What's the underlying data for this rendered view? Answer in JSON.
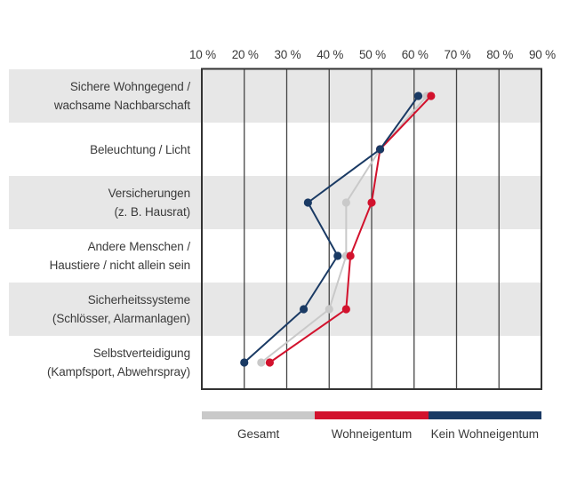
{
  "chart_data": {
    "type": "line",
    "title": "",
    "orientation": "horizontal-categories",
    "x_axis": {
      "position": "top",
      "unit": "%",
      "ticks": [
        10,
        20,
        30,
        40,
        50,
        60,
        70,
        80,
        90
      ],
      "tick_labels": [
        "10 %",
        "20 %",
        "30 %",
        "40 %",
        "50 %",
        "60 %",
        "70 %",
        "80 %",
        "90 %"
      ],
      "xlim": [
        10,
        90
      ]
    },
    "grid": "vertical-only",
    "row_banding": true,
    "categories": [
      {
        "lines": [
          "Sichere Wohngegend /",
          "wachsame Nachbarschaft"
        ]
      },
      {
        "lines": [
          "Beleuchtung / Licht"
        ]
      },
      {
        "lines": [
          "Versicherungen",
          "(z. B. Hausrat)"
        ]
      },
      {
        "lines": [
          "Andere Menschen /",
          "Haustiere / nicht allein sein"
        ]
      },
      {
        "lines": [
          "Sicherheitssysteme",
          "(Schlösser, Alarmanlagen)"
        ]
      },
      {
        "lines": [
          "Selbstverteidigung",
          "(Kampfsport, Abwehrspray)"
        ]
      }
    ],
    "series": [
      {
        "name": "Gesamt",
        "color": "#c9c9c9",
        "values": [
          63,
          52,
          44,
          44,
          40,
          24
        ]
      },
      {
        "name": "Wohneigentum",
        "color": "#d2122d",
        "values": [
          64,
          52,
          50,
          45,
          44,
          26
        ]
      },
      {
        "name": "Kein Wohneigentum",
        "color": "#1a3a64",
        "values": [
          61,
          52,
          35,
          42,
          34,
          20
        ]
      }
    ],
    "legend": {
      "position": "bottom",
      "style": "segmented-bar",
      "entries": [
        "Gesamt",
        "Wohneigentum",
        "Kein Wohneigentum"
      ]
    }
  },
  "colors": {
    "background": "#ffffff",
    "row_band": "#e7e7e7",
    "gridline": "#454545",
    "border": "#333333",
    "text": "#3a3a3a"
  }
}
